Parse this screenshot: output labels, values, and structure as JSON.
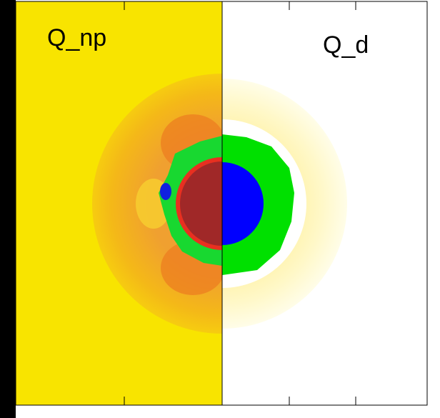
{
  "labels": {
    "left": "Q_np",
    "right": "Q_d"
  }
}
